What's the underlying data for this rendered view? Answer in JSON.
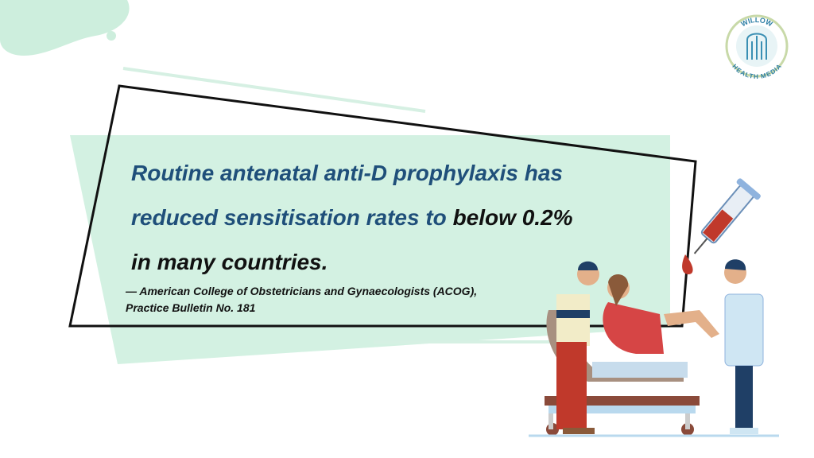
{
  "quote": {
    "text": "Routine antenatal anti-D prophylaxis has reduced sensitisation rates to",
    "emphasis": "below 0.2% in many countries."
  },
  "source": [
    "— American College of Obstetricians and Gynaecologists (ACOG),",
    "Practice Bulletin No. 181"
  ],
  "logo": {
    "top": "WILLOW",
    "bottom": "HEALTH MEDIA"
  }
}
